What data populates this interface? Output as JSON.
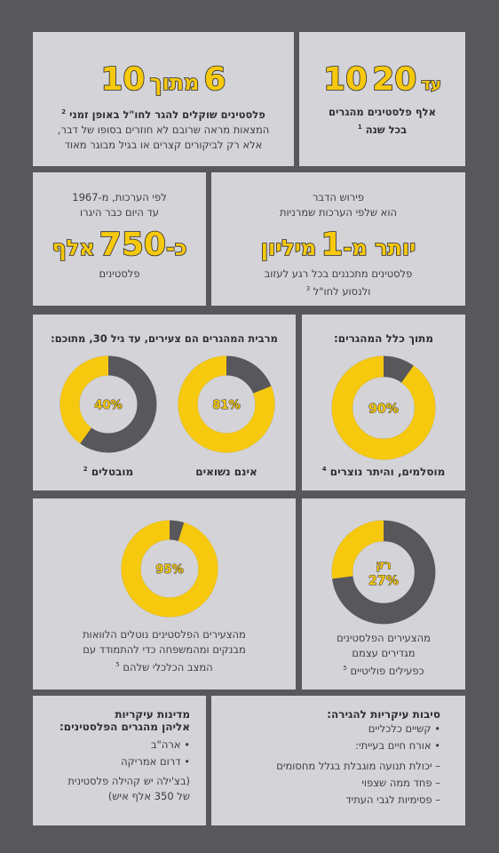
{
  "p1": {
    "num_from": "10",
    "word": "עד",
    "num_to": "20",
    "line1": "אלף פלסטינים מהגרים",
    "line2": "בכל שנה",
    "note": "1"
  },
  "p2": {
    "num_a": "6",
    "word": "מתוך",
    "num_b": "10",
    "head": "פלסטינים שוקלים להגר לחו\"ל באופן זמני",
    "note": "2",
    "line1": "המצאות מראה שרובם לא חוזרים בסופו של דבר,",
    "line2": "אלא רק לביקורים קצרים או בגיל מבוגר מאוד"
  },
  "p3": {
    "line1": "פירוש הדבר",
    "line2": "הוא שלפי הערכות שמרניות",
    "big_pre": "יותר מ-",
    "big_num": "1",
    "big_post": "מיליון",
    "line3": "פלסטינים מתכננים בכל רגע לעזוב",
    "line4": "ולנסוע לחו\"ל",
    "note": "3"
  },
  "p4": {
    "line1": "לפי הערכות, מ-1967",
    "line2": "עד היום כבר היגרו",
    "big_pre": "כ-",
    "big_num": "750",
    "big_post": "אלף",
    "line3": "פלסטינים"
  },
  "p5": {
    "title": "מתוך כלל המהגרים:",
    "value": 90,
    "pct_label": "90%",
    "caption": "מוסלמים, והיתר נוצרים",
    "note": "4"
  },
  "p6": {
    "title": "מרבית המהגרים הם צעירים, עד גיל 30, מתוכם:",
    "donuts": [
      {
        "value": 81,
        "pct_label": "81%",
        "caption": "אינם נשואים",
        "note": ""
      },
      {
        "value": 40,
        "pct_label": "40%",
        "caption": "מובטלים",
        "note": "2"
      }
    ]
  },
  "p7": {
    "value": 27,
    "prefix": "רק",
    "pct_label": "27%",
    "line1": "מהצעירים הפלסטינים",
    "line2": "מגדירים עצמם",
    "line3": "כפעילים פוליטיים",
    "note": "5"
  },
  "p8": {
    "value": 95,
    "pct_label": "95%",
    "line1": "מהצעירים הפלסטינים נוטלים הלוואות",
    "line2": "מבנקים ומהמשפחה כדי להתמודד עם",
    "line3": "המצב הכלכלי שלהם",
    "note": "5"
  },
  "p9": {
    "title": "סיבות עיקריות להגירה:",
    "bullets": [
      "קשיים כלכליים",
      "אורח חיים בעייתי:"
    ],
    "dashes": [
      "יכולת תנועה מוגבלת בגלל מחסומים",
      "פחד ממה שצפוי",
      "פסימיות לגבי העתיד"
    ]
  },
  "p10": {
    "title1": "מדינות עיקריות",
    "title2": "אליהן מהגרים הפלסטינים:",
    "bullets": [
      "ארה\"ב",
      "דרום אמריקה"
    ],
    "line1": "(בצ'ילה יש קהילה פלסטינית",
    "line2": "של 350 אלף איש)"
  },
  "colors": {
    "yellow": "#f6c90e",
    "dark": "#58575c",
    "panel": "#d4d3d8"
  }
}
